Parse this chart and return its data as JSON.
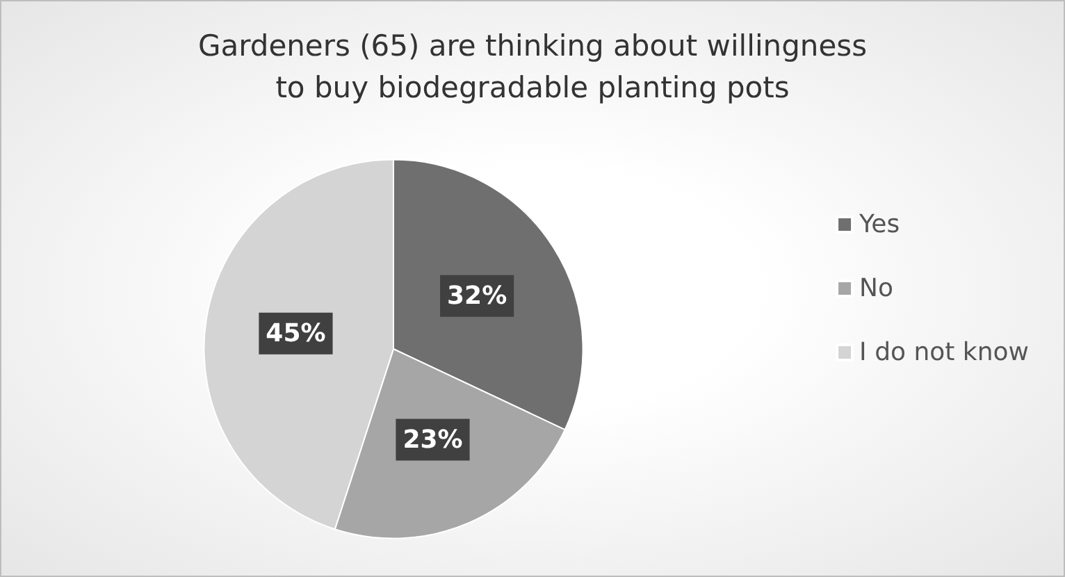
{
  "chart_data": {
    "type": "pie",
    "title": "Gardeners (65) are thinking about willingness\nto buy biodegradable planting pots",
    "categories": [
      "Yes",
      "No",
      "I do not know"
    ],
    "values": [
      32,
      23,
      45
    ],
    "colors": [
      "#6f6f6f",
      "#a6a6a6",
      "#d4d4d4"
    ],
    "value_labels": [
      "32%",
      "23%",
      "45%"
    ],
    "legend": "right"
  }
}
